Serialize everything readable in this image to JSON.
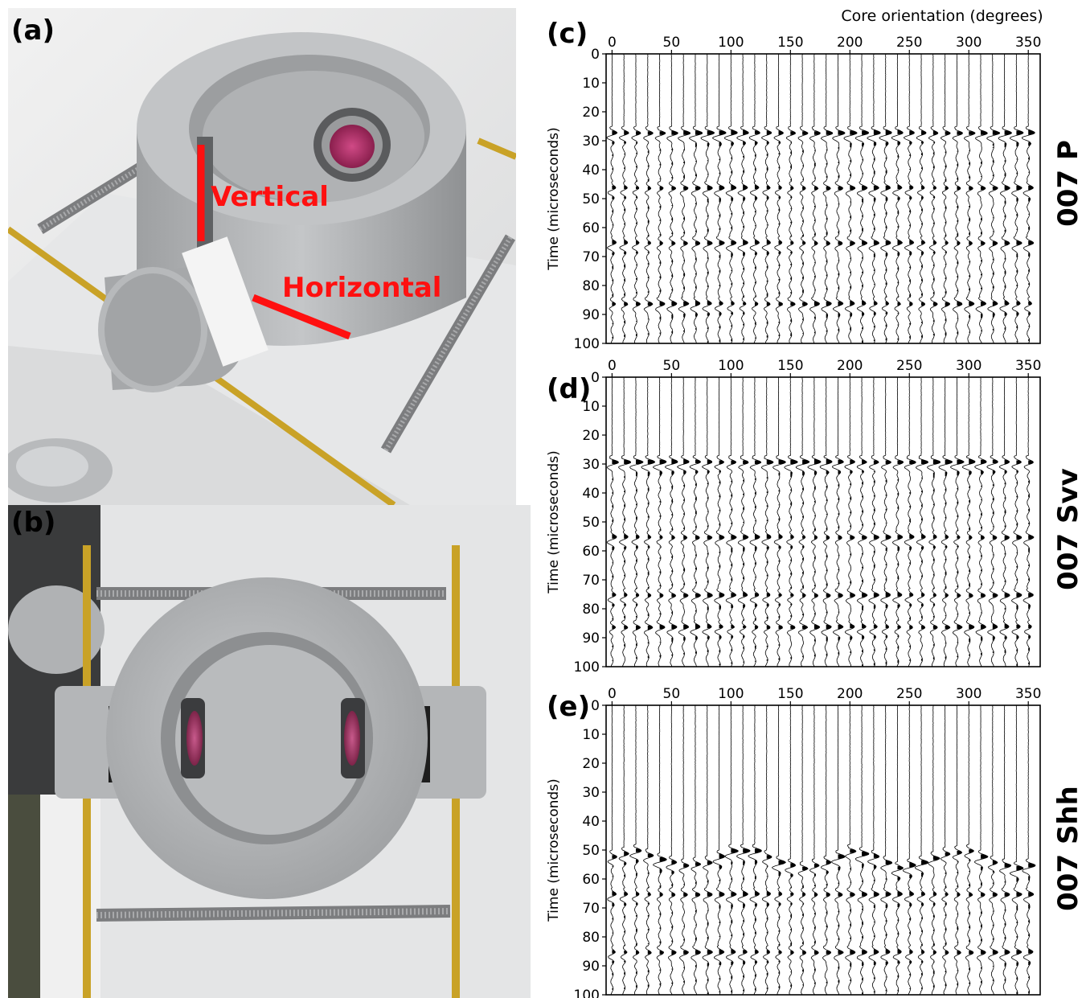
{
  "photos": {
    "a": {
      "letter": "(a)",
      "annotations": {
        "vertical": "Vertical",
        "horizontal": "Horizontal"
      }
    },
    "b": {
      "letter": "(b)"
    }
  },
  "colors": {
    "aluminium": "#b4b6b8",
    "aluminium_dark": "#8f9193",
    "brass": "#c9a227",
    "annotation_red": "#ff1010",
    "transducer_pink": "#c0306a",
    "background_white": "#efefef"
  },
  "top_axis_label": "Core orientation (degrees)",
  "panels": [
    {
      "letter": "(c)",
      "side_label": "007 P",
      "y_axis_label": "Time (microseconds)",
      "x_ticks": [
        "0",
        "50",
        "100",
        "150",
        "200",
        "250",
        "300",
        "350"
      ],
      "y_ticks": [
        "0",
        "10",
        "20",
        "30",
        "40",
        "50",
        "60",
        "70",
        "80",
        "90",
        "100"
      ]
    },
    {
      "letter": "(d)",
      "side_label": "007 Svv",
      "y_axis_label": "Time (microseconds)",
      "x_ticks": [
        "0",
        "50",
        "100",
        "150",
        "200",
        "250",
        "300",
        "350"
      ],
      "y_ticks": [
        "0",
        "10",
        "20",
        "30",
        "40",
        "50",
        "60",
        "70",
        "80",
        "90",
        "100"
      ]
    },
    {
      "letter": "(e)",
      "side_label": "007 Shh",
      "y_axis_label": "Time (microseconds)",
      "x_ticks": [
        "0",
        "50",
        "100",
        "150",
        "200",
        "250",
        "300",
        "350"
      ],
      "y_ticks": [
        "0",
        "10",
        "20",
        "30",
        "40",
        "50",
        "60",
        "70",
        "80",
        "90",
        "100"
      ]
    }
  ],
  "chart_data": [
    {
      "type": "line",
      "subtype": "seismic-wiggle",
      "xlabel": "Core orientation (degrees)",
      "ylabel": "Time (microseconds)",
      "xlim": [
        -5,
        360
      ],
      "ylim": [
        100,
        0
      ],
      "trace_orientations_step_deg": 10,
      "first_arrivals": [
        {
          "orientation_range": [
            0,
            350
          ],
          "time": 27
        },
        {
          "orientation_range": [
            0,
            350
          ],
          "time": 46
        },
        {
          "orientation_range": [
            0,
            350
          ],
          "time": 65
        },
        {
          "orientation_range": [
            0,
            350
          ],
          "time": 86
        }
      ],
      "wave_arrivals_times": [
        27,
        46,
        65,
        86
      ]
    },
    {
      "type": "line",
      "subtype": "seismic-wiggle",
      "xlabel": "Core orientation (degrees)",
      "ylabel": "Time (microseconds)",
      "xlim": [
        -5,
        360
      ],
      "ylim": [
        100,
        0
      ],
      "trace_orientations_step_deg": 10,
      "wave_arrivals_times": [
        29,
        55,
        75,
        86
      ]
    },
    {
      "type": "line",
      "subtype": "seismic-wiggle",
      "xlabel": "Core orientation (degrees)",
      "ylabel": "Time (microseconds)",
      "xlim": [
        -5,
        360
      ],
      "ylim": [
        100,
        0
      ],
      "trace_orientations_step_deg": 10,
      "first_arrival_curve": {
        "orientation": [
          0,
          20,
          40,
          60,
          80,
          100,
          120,
          140,
          160,
          180,
          200,
          220,
          240,
          260,
          280,
          300,
          320,
          340,
          360
        ],
        "time": [
          52,
          50,
          53,
          55,
          54,
          50,
          50,
          54,
          56,
          54,
          50,
          52,
          56,
          54,
          51,
          50,
          54,
          56,
          54
        ]
      },
      "wave_arrivals_times": [
        52,
        65,
        85
      ]
    }
  ]
}
